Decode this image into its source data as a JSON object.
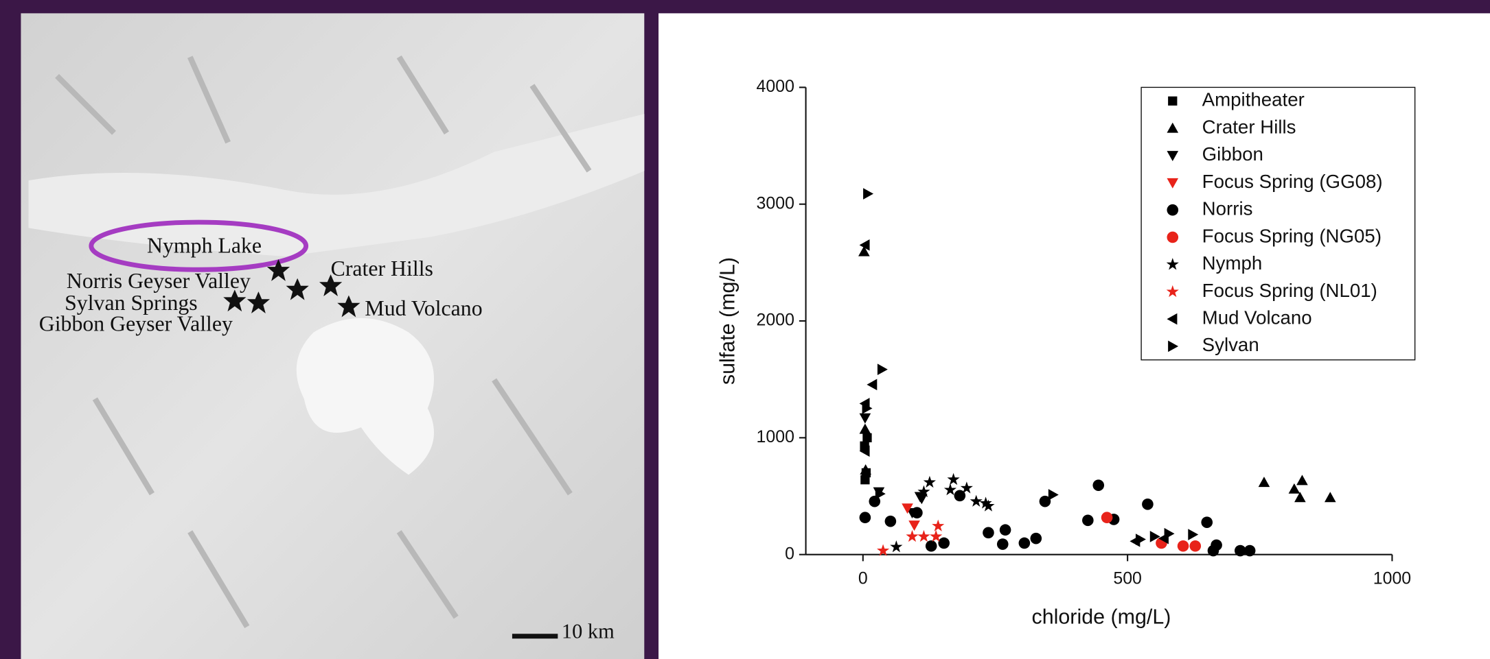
{
  "map": {
    "labels": [
      "Nymph Lake",
      "Crater Hills",
      "Norris Geyser Valley",
      "Sylvan Springs",
      "Gibbon Geyser Valley",
      "Mud Volcano"
    ],
    "scale": "10 km"
  },
  "chart_data": {
    "type": "scatter",
    "x_label": "chloride (mg/L)",
    "y_label": "sulfate (mg/L)",
    "xlim": [
      -108,
      1000
    ],
    "ylim": [
      0,
      4000
    ],
    "xticks": [
      0,
      500,
      1000
    ],
    "yticks": [
      0,
      1000,
      2000,
      3000,
      4000
    ],
    "legend": "upper right",
    "series": [
      {
        "name": "Ampitheater",
        "color": "#000000",
        "marker": "square",
        "x": [
          4,
          6,
          3,
          8
        ],
        "values": [
          640,
          700,
          930,
          1000
        ]
      },
      {
        "name": "Crater Hills",
        "color": "#000000",
        "marker": "triangle-up",
        "x": [
          758,
          815,
          830,
          826,
          883,
          4,
          2,
          5
        ],
        "values": [
          618,
          561,
          634,
          488,
          488,
          1073,
          2593,
          724
        ]
      },
      {
        "name": "Gibbon",
        "color": "#000000",
        "marker": "triangle-down",
        "x": [
          30,
          111,
          93,
          108,
          4
        ],
        "values": [
          537,
          480,
          358,
          496,
          1170
        ]
      },
      {
        "name": "Focus Spring (GG08)",
        "color": "#e8231a",
        "marker": "triangle-down",
        "x": [
          84,
          97
        ],
        "values": [
          398,
          252
        ]
      },
      {
        "name": "Norris",
        "color": "#000000",
        "marker": "circle",
        "x": [
          4,
          22,
          52,
          102,
          129,
          153,
          183,
          237,
          269,
          264,
          305,
          327,
          344,
          425,
          445,
          474,
          538,
          650,
          668,
          662,
          713,
          731
        ],
        "values": [
          317,
          455,
          285,
          358,
          73,
          98,
          504,
          187,
          211,
          89,
          98,
          138,
          455,
          293,
          593,
          301,
          431,
          276,
          81,
          33,
          33,
          33
        ]
      },
      {
        "name": "Focus Spring (NG05)",
        "color": "#e8231a",
        "marker": "circle",
        "x": [
          461,
          564,
          605,
          628
        ],
        "values": [
          317,
          98,
          73,
          73
        ]
      },
      {
        "name": "Nymph",
        "color": "#000000",
        "marker": "star",
        "x": [
          63,
          126,
          115,
          171,
          165,
          196,
          214,
          237,
          232
        ],
        "values": [
          65,
          618,
          537,
          642,
          553,
          569,
          455,
          415,
          439
        ]
      },
      {
        "name": "Focus Spring (NL01)",
        "color": "#e8231a",
        "marker": "star",
        "x": [
          38,
          93,
          115,
          142,
          138
        ],
        "values": [
          33,
          154,
          154,
          244,
          154
        ]
      },
      {
        "name": "Mud Volcano",
        "color": "#000000",
        "marker": "triangle-left",
        "x": [
          4,
          4,
          18,
          4,
          569,
          515
        ],
        "values": [
          1293,
          2650,
          1455,
          886,
          138,
          114
        ]
      },
      {
        "name": "Sylvan",
        "color": "#000000",
        "marker": "triangle-right",
        "x": [
          9,
          36,
          32,
          359,
          524,
          551,
          578,
          623,
          7
        ],
        "values": [
          3089,
          1585,
          520,
          512,
          130,
          154,
          179,
          171,
          1252
        ]
      }
    ]
  }
}
